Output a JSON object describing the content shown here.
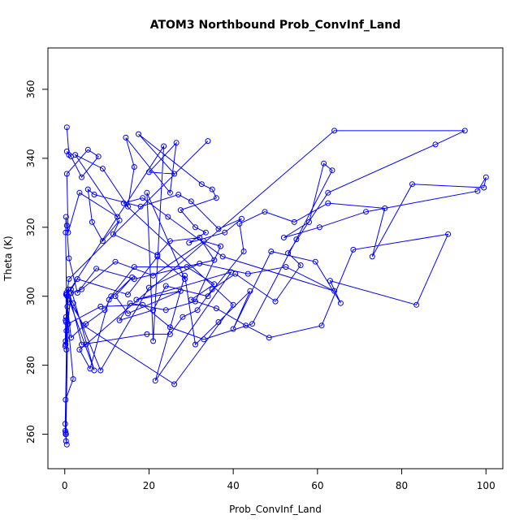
{
  "chart_data": {
    "type": "line",
    "title": "ATOM3 Northbound Prob_ConvInf_Land",
    "xlabel": "Prob_ConvInf_Land",
    "ylabel": "Theta (K)",
    "xlim": [
      -4,
      104
    ],
    "ylim": [
      250,
      372
    ],
    "xticks": [
      "0",
      "20",
      "40",
      "60",
      "80",
      "100"
    ],
    "yticks": [
      "260",
      "280",
      "300",
      "320",
      "340",
      "360"
    ],
    "series_color": "#0000ff",
    "markers": "open-circle",
    "series": [
      {
        "name": "",
        "x": [
          0.5,
          1.0,
          0.5,
          1.5,
          4.0,
          8.0,
          5.5,
          0.5,
          0.8,
          3.5,
          12.5,
          2.5,
          9.0,
          15.0,
          16.5,
          14.5,
          25.0,
          26.5,
          20.0,
          26.0,
          17.5,
          32.5,
          35.0,
          36.0,
          27.5,
          31.0,
          33.5,
          29.5,
          38.0,
          42.0,
          36.5,
          30.0,
          27.0,
          18.0,
          7.0,
          5.5,
          6.5,
          9.0,
          13.0,
          11.5,
          22.0,
          25.0,
          32.0,
          35.5,
          16.5,
          7.5,
          3.0,
          1.0,
          0.5,
          0.3,
          0.2,
          0.4,
          0.6,
          0.3,
          0.2,
          1.5,
          4.0,
          12.0,
          21.0,
          33.0,
          37.0,
          31.0,
          24.0,
          15.5,
          13.0,
          21.0,
          24.0,
          34.0,
          42.5,
          41.5,
          47.5,
          54.5,
          62.5,
          76.0,
          73.0,
          82.5,
          99.5,
          100.0,
          98.0,
          71.5,
          60.5,
          52.0,
          58.0,
          61.5,
          63.5,
          55.0,
          44.5,
          33.0,
          25.0,
          18.5,
          8.5,
          0.8,
          0.3,
          0.2,
          0.1,
          0.2,
          0.4,
          0.8,
          2.0,
          0.2,
          0.1,
          0.3,
          0.2,
          0.5,
          0.2,
          0.1,
          0.4,
          0.3,
          1.5,
          5.0,
          9.5,
          11.0,
          16.5,
          29.0,
          35.5,
          30.0,
          36.0,
          43.0,
          48.5,
          61.0,
          68.5,
          91.0,
          83.5,
          63.0,
          65.5,
          59.5,
          49.0,
          40.0,
          44.0,
          36.5,
          31.0,
          28.5,
          21.5,
          39.5,
          17.0,
          27.5,
          15.0,
          12.0,
          16.0,
          10.5,
          6.0,
          3.5,
          5.0,
          64.0,
          95.0,
          88.0,
          62.5,
          53.0,
          56.0,
          50.0,
          40.5,
          35.0,
          31.5,
          28.0,
          25.0,
          19.5,
          4.0,
          0.8,
          0.3,
          0.6,
          2.0,
          8.5,
          20.0,
          32.0,
          43.5,
          52.5,
          64.0,
          37.5,
          24.5,
          18.5,
          14.0,
          40.0,
          26.0,
          4.5,
          1.0,
          7.0,
          1.5,
          3.0,
          15.0,
          22.0,
          28.5,
          19.5,
          21.0,
          23.5,
          0.5,
          1.0,
          34.0
        ],
        "y": [
          349.0,
          341.0,
          342.0,
          340.5,
          334.5,
          340.5,
          342.5,
          335.5,
          318.5,
          330.0,
          323.0,
          341.0,
          337.0,
          326.0,
          337.5,
          346.0,
          330.0,
          344.5,
          336.0,
          335.5,
          347.0,
          332.5,
          331.0,
          328.5,
          325.0,
          320.0,
          318.5,
          315.5,
          318.5,
          322.5,
          319.5,
          327.5,
          329.5,
          326.0,
          329.5,
          331.0,
          321.5,
          316.0,
          322.0,
          318.0,
          312.0,
          316.0,
          317.0,
          310.5,
          305.0,
          308.0,
          301.0,
          311.0,
          320.5,
          323.0,
          318.5,
          301.0,
          297.0,
          292.5,
          286.0,
          301.0,
          302.0,
          310.0,
          306.0,
          316.0,
          314.5,
          298.5,
          296.0,
          298.0,
          293.0,
          296.0,
          303.0,
          300.0,
          313.0,
          321.0,
          324.5,
          321.5,
          327.0,
          325.5,
          311.5,
          332.5,
          331.5,
          334.5,
          330.5,
          324.5,
          320.0,
          317.0,
          321.5,
          338.5,
          336.5,
          316.5,
          292.0,
          287.5,
          291.0,
          297.5,
          297.0,
          292.0,
          294.0,
          293.0,
          285.5,
          287.0,
          290.0,
          292.0,
          276.0,
          270.0,
          263.0,
          258.0,
          260.5,
          257.0,
          260.0,
          261.0,
          284.5,
          300.5,
          288.0,
          292.0,
          296.0,
          300.0,
          308.5,
          308.5,
          303.5,
          299.0,
          296.5,
          291.5,
          288.0,
          291.5,
          313.5,
          318.0,
          297.5,
          304.5,
          298.0,
          310.0,
          313.0,
          290.5,
          301.5,
          292.5,
          286.0,
          306.0,
          275.5,
          307.0,
          299.0,
          301.5,
          295.0,
          300.0,
          305.5,
          299.0,
          279.0,
          284.5,
          286.0,
          348.0,
          348.0,
          344.0,
          330.0,
          312.5,
          309.0,
          298.5,
          306.5,
          302.0,
          296.0,
          294.0,
          289.0,
          289.0,
          286.0,
          302.0,
          260.0,
          300.0,
          298.0,
          278.5,
          302.5,
          309.5,
          306.5,
          308.5,
          301.5,
          311.5,
          323.0,
          328.5,
          327.0,
          297.5,
          274.5,
          291.5,
          299.0,
          278.5,
          302.0,
          305.0,
          300.5,
          311.5,
          305.0,
          330.0,
          287.0,
          343.5,
          300.5,
          305.0,
          345.0
        ]
      }
    ]
  }
}
